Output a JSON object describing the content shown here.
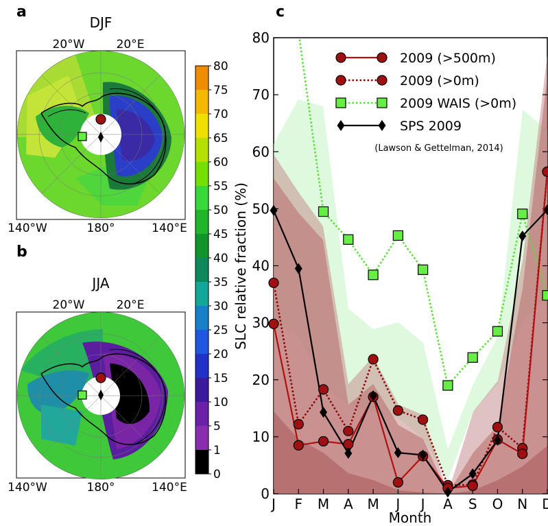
{
  "panels": {
    "a": {
      "letter": "a",
      "season": "DJF"
    },
    "b": {
      "letter": "b",
      "season": "JJA"
    },
    "c": {
      "letter": "c"
    }
  },
  "map_labels": {
    "w20": "20°W",
    "e20": "20°E",
    "w140": "140°W",
    "d180": "180°",
    "e140": "140°E"
  },
  "colorbar": {
    "ticks": [
      "80",
      "75",
      "70",
      "65",
      "60",
      "55",
      "50",
      "45",
      "40",
      "35",
      "30",
      "25",
      "20",
      "15",
      "10",
      "5",
      "1",
      "0"
    ],
    "colors": [
      "#f08c00",
      "#f5b800",
      "#f0e000",
      "#b6e000",
      "#73e000",
      "#38d83a",
      "#21b52a",
      "#11952b",
      "#0c8a5e",
      "#13a79b",
      "#1880c8",
      "#1f58e0",
      "#2232c8",
      "#3c1a9e",
      "#6a20a8",
      "#8a2cb0",
      "#000000"
    ]
  },
  "chart_data": {
    "type": "line",
    "categories": [
      "J",
      "F",
      "M",
      "A",
      "M",
      "J",
      "J",
      "A",
      "S",
      "O",
      "N",
      "D"
    ],
    "xlabel": "Month",
    "ylabel": "SLC relative fraction (%)",
    "ylim": [
      0,
      80
    ],
    "yticks": [
      "0",
      "10",
      "20",
      "30",
      "40",
      "50",
      "60",
      "70",
      "80"
    ],
    "annotation": "(Lawson & Gettelman, 2014)",
    "legend_position": "top-right",
    "series": [
      {
        "name": "2009 (>500m)",
        "values": [
          29.8,
          8.5,
          9.2,
          8.7,
          17.0,
          2.0,
          6.6,
          1.0,
          1.4,
          9.5,
          7.0,
          56.5
        ],
        "color": "#b01010",
        "marker": "circle",
        "line": "solid"
      },
      {
        "name": "2009 (>0m)",
        "values": [
          37.0,
          12.2,
          18.3,
          11.0,
          23.6,
          14.6,
          13.0,
          1.5,
          1.6,
          11.7,
          8.0,
          56.5
        ],
        "color": "#8b0000",
        "marker": "circle",
        "line": "dotted"
      },
      {
        "name": "2009 WAIS (>0m)",
        "values": [
          null,
          81.0,
          49.5,
          44.6,
          38.4,
          45.3,
          39.3,
          19.0,
          23.9,
          28.5,
          49.1,
          34.8
        ],
        "color": "#55e035",
        "marker": "square",
        "line": "dotted"
      },
      {
        "name": "SPS 2009",
        "values": [
          49.7,
          39.5,
          14.3,
          7.1,
          17.2,
          7.2,
          6.8,
          0.3,
          3.5,
          9.4,
          45.2,
          49.8
        ],
        "color": "#000000",
        "marker": "diamond",
        "line": "solid"
      }
    ]
  }
}
